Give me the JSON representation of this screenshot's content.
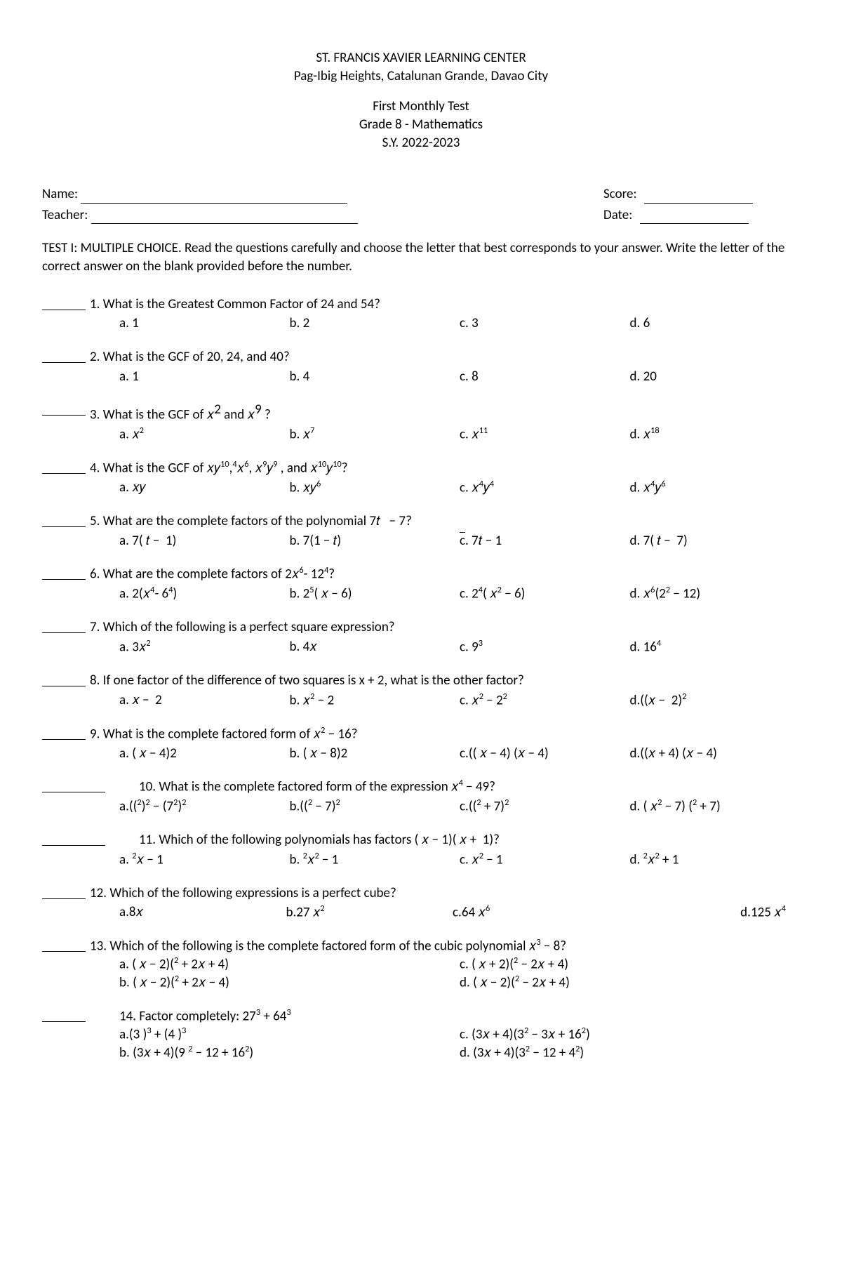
{
  "header": {
    "school": "ST.  FRANCIS XAVIER LEARNING CENTER",
    "address": "Pag-Ibig Heights, Catalunan Grande, Davao City",
    "test_title": "First Monthly Test",
    "grade_subject": "Grade 8 - Mathematics",
    "school_year": "S.Y. 2022-2023"
  },
  "info": {
    "name_label": "Name:",
    "teacher_label": "Teacher:",
    "score_label": "Score:",
    "date_label": "Date:"
  },
  "instructions": "TEST I: MULTIPLE CHOICE. Read the questions carefully and choose the letter that best corresponds to your answer. Write the letter of the correct answer on the blank provided before the number.",
  "questions": [
    {
      "num": "1",
      "text": "1. What is the Greatest Common Factor of 24 and 54?",
      "choices": [
        "a. 1",
        "b. 2",
        "c. 3",
        "d. 6"
      ]
    },
    {
      "num": "2",
      "text": "2. What is the GCF of 20, 24, and 40?",
      "choices": [
        "a. 1",
        "b. 4",
        "c. 8",
        "d. 20"
      ]
    },
    {
      "num": "3",
      "text_html": "3. What is the GCF of 𝑥<sup style='font-size:1em'>2</sup> and 𝑥<sup style='font-size:1em'>9</sup> ?",
      "choices_html": [
        "a.  𝑥<sup>2</sup>",
        "b. 𝑥<sup>7</sup>",
        "c. 𝑥<sup>11</sup>",
        "d. 𝑥<sup>18</sup>"
      ]
    },
    {
      "num": "4",
      "text_html": "4. What is the GCF of 𝑥𝑦<sup>10</sup>,<sup>4</sup>𝑥<sup>6</sup>, 𝑥<sup>9</sup>𝑦<sup>9</sup> , and 𝑥<sup>10</sup>𝑦<sup>10</sup>?",
      "choices_html": [
        "a. 𝑥𝑦",
        "b. 𝑥𝑦<sup>6</sup>",
        "c. 𝑥<sup>4</sup>𝑦<sup>4</sup>",
        "d. 𝑥<sup>4</sup>𝑦<sup>6</sup>"
      ]
    },
    {
      "num": "5",
      "text_html": "5. What are the complete factors of the polynomial 7𝑡 &nbsp;&nbsp;− 7?",
      "choices_html": [
        "a. 7( 𝑡 − &nbsp;1)",
        "b. 7(1 − 𝑡)",
        "<span style='text-decoration:overline'>c</span>. 7𝑡 − 1",
        "d. 7( 𝑡 − &nbsp;7)"
      ]
    },
    {
      "num": "6",
      "text_html": "6. What are the complete factors of 2𝑥<sup>6</sup>- 12<sup>4</sup>?",
      "choices_html": [
        "a. 2(𝑥<sup>4</sup>- 6<sup>4</sup>)",
        "b. 2<sup>5</sup>( 𝑥 − 6)",
        "c. 2<sup>4</sup>( 𝑥<sup>2</sup> − 6)",
        "d. 𝑥<sup>6</sup>(2<sup>2</sup> − 12)"
      ]
    },
    {
      "num": "7",
      "text": "7. Which of the following is a perfect square expression?",
      "choices_html": [
        "a.  3𝑥<sup>2</sup>",
        "b. 4𝑥",
        "c. 9<sup>3</sup>",
        "d. 16<sup>4</sup>"
      ]
    },
    {
      "num": "8",
      "text": "8. If one factor of the difference of two squares is x + 2, what is the other factor?",
      "choices_html": [
        "a. 𝑥 − &nbsp;2",
        "b. 𝑥<sup>2</sup> − 2",
        "c. 𝑥<sup>2</sup> − 2<sup>2</sup>",
        "d.((𝑥 − &nbsp;2)<sup>2</sup>"
      ]
    },
    {
      "num": "9",
      "text_html": "9. What is the complete factored form of 𝑥<sup>2</sup> − 16?",
      "choices_html": [
        "a. ( 𝑥 − 4)2",
        "b. ( 𝑥 − 8)2",
        "c.(( 𝑥 − 4) (𝑥 − 4)",
        "d.((𝑥 + 4) (𝑥 − 4)"
      ]
    },
    {
      "num": "10",
      "text_html": "10. What is the complete factored form of the expression 𝑥<sup>4</sup> − 49?",
      "choices_html": [
        "a.((<sup>2</sup>)<sup>2</sup> − (7<sup>2</sup>)<sup>2</sup>",
        "b.((<sup>2</sup> − 7)<sup>2</sup>",
        "c.((<sup>2</sup> + 7)<sup>2</sup>",
        "d. ( 𝑥<sup>2</sup> − 7) (<sup>2</sup> + 7)"
      ]
    },
    {
      "num": "11",
      "text_html": "11. Which of the following polynomials has factors ( 𝑥 − 1)( 𝑥 + &nbsp;1)?",
      "choices_html": [
        "a. <sup>2</sup>𝑥 − 1",
        "b. <sup>2</sup>𝑥<sup>2</sup> − 1",
        "c. 𝑥<sup>2</sup> − 1",
        "d. <sup>2</sup>𝑥<sup>2</sup> + 1"
      ]
    },
    {
      "num": "12",
      "text": "12. Which of the following expressions is a perfect cube?",
      "choices_html": [
        "a.8𝑥",
        "b.27 𝑥<sup>2</sup>",
        "c.64 𝑥<sup>6</sup>",
        "d.125 𝑥<sup>4</sup>"
      ]
    },
    {
      "num": "13",
      "text_html": "13. Which of the following is the complete factored form of the cubic polynomial 𝑥<sup>3</sup> − 8?",
      "two_col": [
        [
          "a. ( 𝑥 − 2)(<sup>2</sup> + 2𝑥 + 4)",
          "c. ( 𝑥 + 2)(<sup>2</sup> − 2𝑥 + 4)"
        ],
        [
          "b. ( 𝑥 − 2)(<sup>2</sup> + 2𝑥 − 4)",
          "d. ( 𝑥 − 2)(<sup>2</sup> − 2𝑥 + 4)"
        ]
      ]
    },
    {
      "num": "14",
      "text_html": "14. Factor completely: 27<sup>3</sup> + 64<sup>3</sup>",
      "two_col": [
        [
          "a.(3 )<sup>3</sup> + (4 )<sup>3</sup>",
          "c. (3𝑥 + 4)(3<sup>2</sup> − 3𝑥 + 16<sup>2</sup>)"
        ],
        [
          "b. (3𝑥 + 4)(9 <sup>2</sup> − 12 + 16<sup>2</sup>)",
          "d. (3𝑥 + 4)(3<sup>2</sup> − 12 + 4<sup>2</sup>)"
        ]
      ]
    }
  ]
}
